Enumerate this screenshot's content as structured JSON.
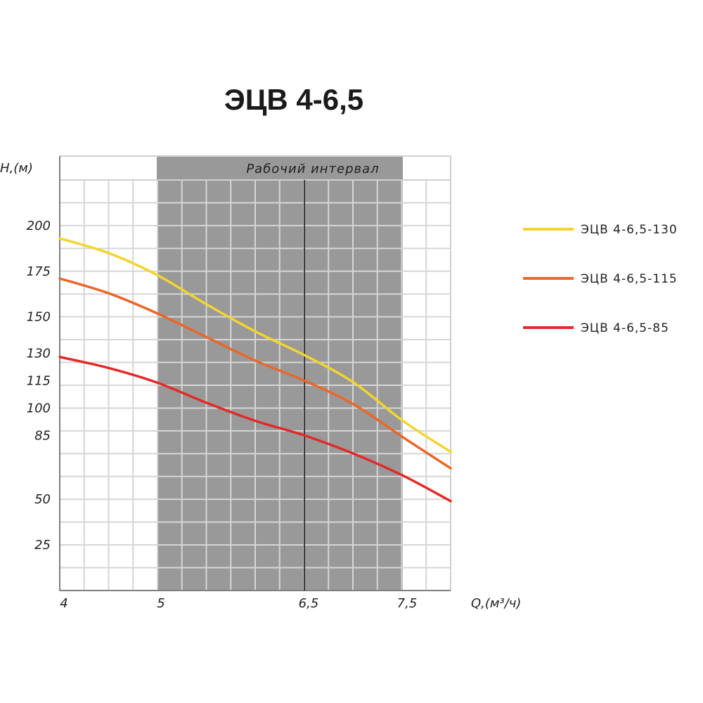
{
  "chart_data": {
    "type": "line",
    "title": "ЭЦВ 4-6,5",
    "xlabel": "Q,(м³/ч)",
    "ylabel": "H,(м)",
    "x_ticks": [
      {
        "value": 4,
        "label": "4"
      },
      {
        "value": 5,
        "label": "5"
      },
      {
        "value": 6.5,
        "label": "6,5"
      },
      {
        "value": 7.5,
        "label": "7,5"
      }
    ],
    "y_ticks": [
      {
        "value": 200,
        "label": "200"
      },
      {
        "value": 175,
        "label": "175"
      },
      {
        "value": 150,
        "label": "150"
      },
      {
        "value": 130,
        "label": "130"
      },
      {
        "value": 115,
        "label": "115"
      },
      {
        "value": 100,
        "label": "100"
      },
      {
        "value": 85,
        "label": "85"
      },
      {
        "value": 50,
        "label": "50"
      },
      {
        "value": 25,
        "label": "25"
      }
    ],
    "xlim": [
      4,
      8
    ],
    "ylim": [
      0,
      225
    ],
    "grid": true,
    "working_interval": {
      "label": "Рабочий интервал",
      "x_start": 5,
      "x_end": 7.5,
      "nominal_x": 6.5
    },
    "legend_position": "right",
    "series": [
      {
        "name": "ЭЦВ 4-6,5-130",
        "color": "#f2d531",
        "points": [
          [
            4.0,
            193
          ],
          [
            4.5,
            185
          ],
          [
            5.0,
            173
          ],
          [
            5.5,
            157
          ],
          [
            6.0,
            142
          ],
          [
            6.5,
            129
          ],
          [
            7.0,
            114
          ],
          [
            7.5,
            93
          ],
          [
            8.0,
            76
          ]
        ]
      },
      {
        "name": "ЭЦВ 4-6,5-115",
        "color": "#e9672a",
        "points": [
          [
            4.0,
            171
          ],
          [
            4.5,
            163
          ],
          [
            5.0,
            152
          ],
          [
            5.5,
            139
          ],
          [
            6.0,
            126
          ],
          [
            6.5,
            115
          ],
          [
            7.0,
            102
          ],
          [
            7.5,
            84
          ],
          [
            8.0,
            67
          ]
        ]
      },
      {
        "name": "ЭЦВ 4-6,5-85",
        "color": "#e02b27",
        "points": [
          [
            4.0,
            128
          ],
          [
            4.5,
            122
          ],
          [
            5.0,
            114
          ],
          [
            5.5,
            103
          ],
          [
            6.0,
            93
          ],
          [
            6.5,
            85
          ],
          [
            7.0,
            75
          ],
          [
            7.5,
            63
          ],
          [
            8.0,
            49
          ]
        ]
      }
    ]
  }
}
